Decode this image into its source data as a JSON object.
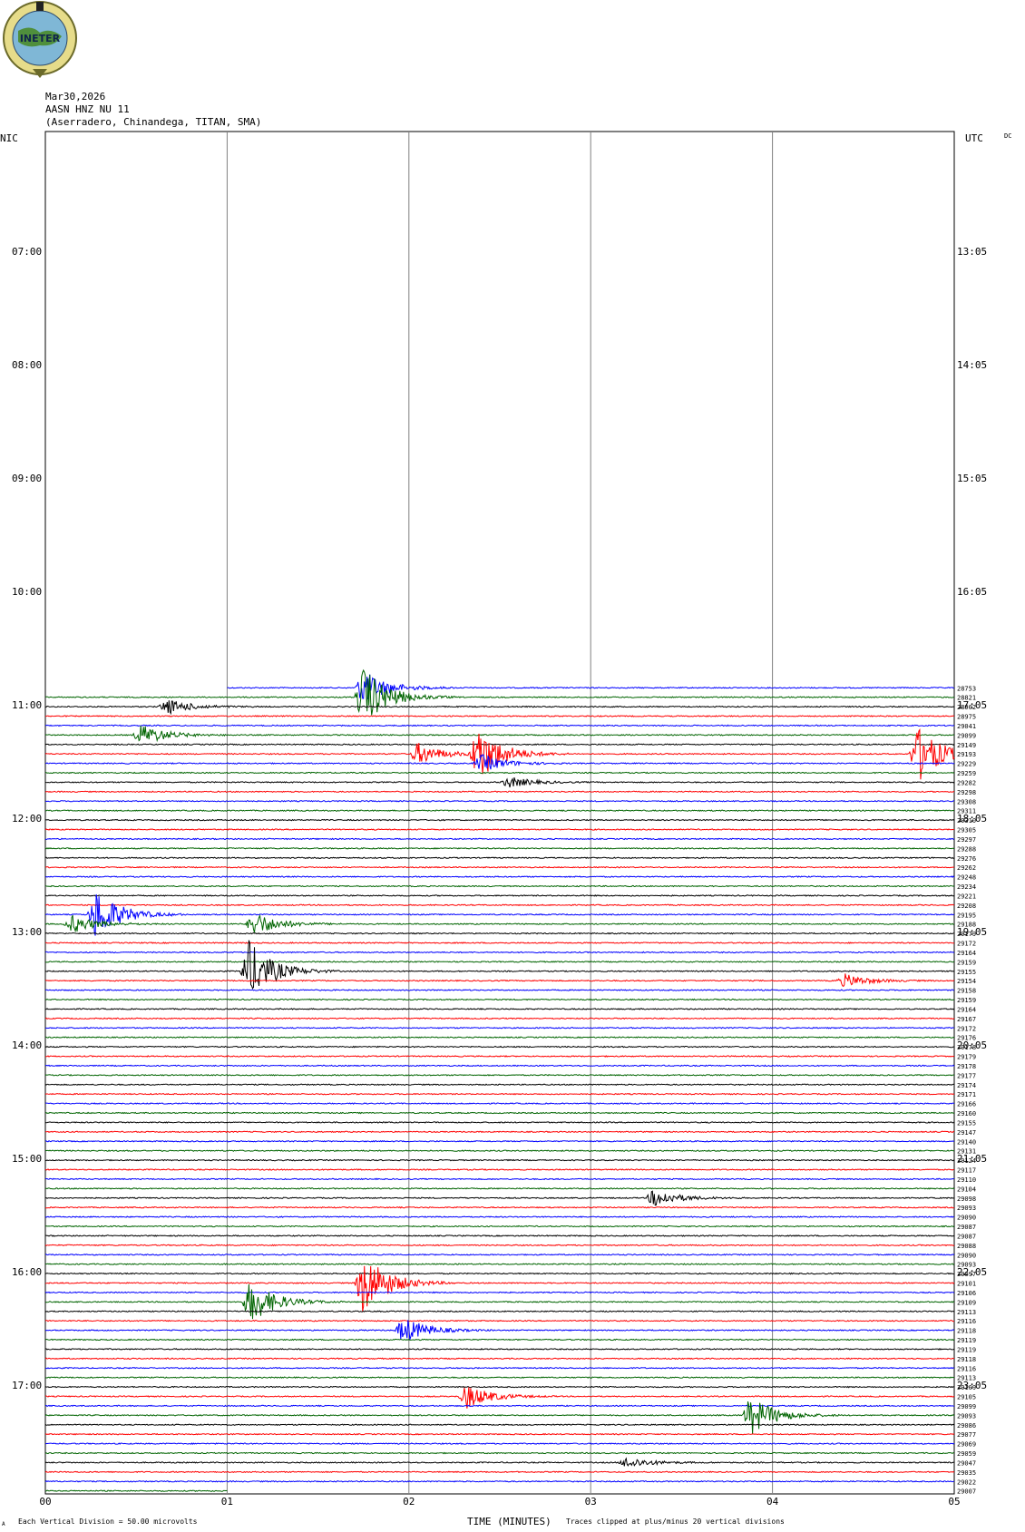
{
  "header": {
    "date": "Mar30,2026",
    "station": "AASN HNZ NU 11",
    "location": "(Aserradero, Chinandega, TITAN, SMA)",
    "left_tz": "NIC",
    "right_tz": "UTC",
    "dc": "DC",
    "logo_text": "INETER"
  },
  "footer": {
    "scale_note": "Each Vertical Division =   50.00 microvolts",
    "xlabel": "TIME (MINUTES)",
    "clip_note": "Traces clipped at plus/minus 20 vertical divisions",
    "corner_mark": "A"
  },
  "colors": {
    "black": "#000000",
    "red": "#ff0000",
    "blue": "#0000ff",
    "green": "#006400",
    "grid": "#808080"
  },
  "chart_data": {
    "type": "line",
    "title": "",
    "xlabel": "TIME (MINUTES)",
    "xlim": [
      0,
      5
    ],
    "x_ticks": [
      "00",
      "01",
      "02",
      "03",
      "04",
      "05"
    ],
    "left_time_labels": [
      "07:00",
      "08:00",
      "09:00",
      "10:00",
      "11:00",
      "12:00",
      "13:00",
      "14:00",
      "15:00",
      "16:00",
      "17:00"
    ],
    "right_time_labels": [
      "13:05",
      "14:05",
      "15:05",
      "16:05",
      "17:05",
      "18:05",
      "19:05",
      "20:05",
      "21:05",
      "22:05",
      "23:05"
    ],
    "first_trace_hour": 10.85,
    "trace_interval_minutes": 5,
    "trace_color_cycle": [
      "blue",
      "green",
      "black",
      "red"
    ],
    "first_trace_start_minute": 1,
    "last_trace_end_minute": 1,
    "trace_counts": [
      "28753",
      "28821",
      "28902",
      "28975",
      "29041",
      "29099",
      "29149",
      "29193",
      "29229",
      "29259",
      "29282",
      "29298",
      "29308",
      "29311",
      "29310",
      "29305",
      "29297",
      "29288",
      "29276",
      "29262",
      "29248",
      "29234",
      "29221",
      "29208",
      "29195",
      "29188",
      "29179",
      "29172",
      "29164",
      "29159",
      "29155",
      "29154",
      "29158",
      "29159",
      "29164",
      "29167",
      "29172",
      "29176",
      "29178",
      "29179",
      "29178",
      "29177",
      "29174",
      "29171",
      "29166",
      "29160",
      "29155",
      "29147",
      "29140",
      "29131",
      "29124",
      "29117",
      "29110",
      "29104",
      "29098",
      "29093",
      "29090",
      "29087",
      "29087",
      "29088",
      "29090",
      "29093",
      "29097",
      "29101",
      "29106",
      "29109",
      "29113",
      "29116",
      "29118",
      "29119",
      "29119",
      "29118",
      "29116",
      "29113",
      "29109",
      "29105",
      "29099",
      "29093",
      "29086",
      "29077",
      "29069",
      "29059",
      "29047",
      "29035",
      "29022",
      "29007"
    ],
    "events": [
      {
        "trace": 0,
        "minute": 1.75,
        "amp": 1.6
      },
      {
        "trace": 1,
        "minute": 1.75,
        "amp": 2.8
      },
      {
        "trace": 2,
        "minute": 0.67,
        "amp": 0.7
      },
      {
        "trace": 5,
        "minute": 0.53,
        "amp": 1.0
      },
      {
        "trace": 7,
        "minute": 2.38,
        "amp": 2.6
      },
      {
        "trace": 7,
        "minute": 2.05,
        "amp": 1.0
      },
      {
        "trace": 7,
        "minute": 4.8,
        "amp": 2.6
      },
      {
        "trace": 8,
        "minute": 2.4,
        "amp": 0.8
      },
      {
        "trace": 10,
        "minute": 2.55,
        "amp": 0.5
      },
      {
        "trace": 24,
        "minute": 0.28,
        "amp": 2.4
      },
      {
        "trace": 25,
        "minute": 0.15,
        "amp": 0.8
      },
      {
        "trace": 25,
        "minute": 1.15,
        "amp": 1.1
      },
      {
        "trace": 30,
        "minute": 1.12,
        "amp": 2.8
      },
      {
        "trace": 31,
        "minute": 4.4,
        "amp": 0.6
      },
      {
        "trace": 54,
        "minute": 3.35,
        "amp": 0.8
      },
      {
        "trace": 63,
        "minute": 1.75,
        "amp": 3.0
      },
      {
        "trace": 65,
        "minute": 1.13,
        "amp": 2.0
      },
      {
        "trace": 68,
        "minute": 1.97,
        "amp": 1.2
      },
      {
        "trace": 75,
        "minute": 2.32,
        "amp": 1.1
      },
      {
        "trace": 77,
        "minute": 3.88,
        "amp": 1.8
      },
      {
        "trace": 82,
        "minute": 3.2,
        "amp": 0.5
      }
    ]
  }
}
